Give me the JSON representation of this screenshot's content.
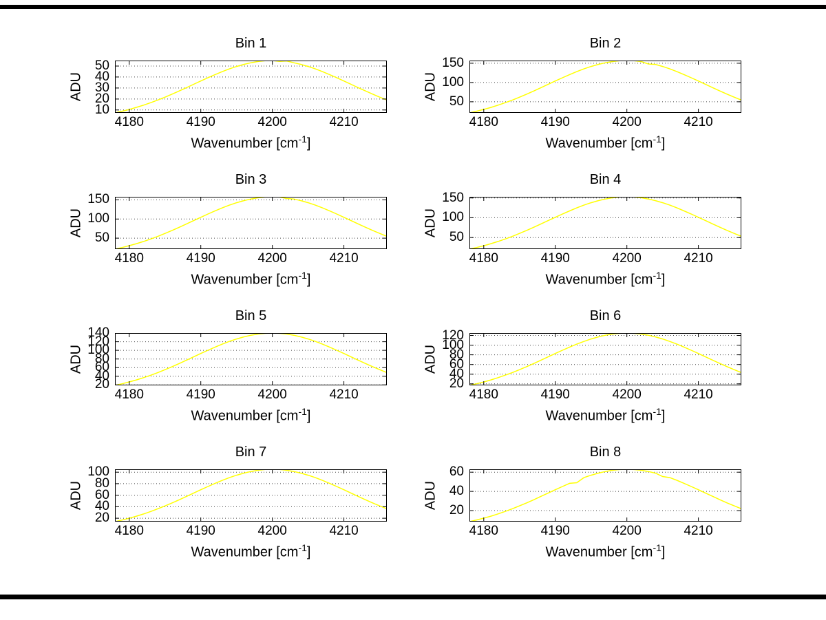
{
  "figure": {
    "background": "#ffffff",
    "line_color": "#ffff00",
    "grid_style": "horizontal-dotted",
    "grid_color": "#444444"
  },
  "labels": {
    "ylabel": "ADU",
    "xlabel_pre": "Wavenumber [cm",
    "xlabel_sup": "-1",
    "xlabel_post": "]"
  },
  "chart_data": {
    "type": "line",
    "x_label": "Wavenumber [cm^-1]",
    "y_label": "ADU",
    "legend": "none",
    "xlim": [
      4178,
      4216
    ],
    "xticks": [
      4180,
      4190,
      4200,
      4210
    ],
    "x": [
      4178,
      4179,
      4180,
      4181,
      4182,
      4183,
      4184,
      4185,
      4186,
      4187,
      4188,
      4189,
      4190,
      4191,
      4192,
      4193,
      4194,
      4195,
      4196,
      4197,
      4198,
      4199,
      4200,
      4201,
      4202,
      4203,
      4204,
      4205,
      4206,
      4207,
      4208,
      4209,
      4210,
      4211,
      4212,
      4213,
      4214,
      4215,
      4216
    ],
    "subplots": [
      {
        "title": "Bin 1",
        "yticks": [
          10,
          20,
          30,
          40,
          50
        ],
        "ylim": [
          7.4,
          55
        ],
        "values": [
          7.4,
          8.9,
          10.5,
          12.4,
          14.4,
          16.7,
          19.1,
          21.7,
          24.5,
          27.4,
          30.3,
          33.4,
          36.4,
          39.4,
          42.2,
          44.9,
          47.4,
          49.6,
          51.5,
          53.0,
          54.1,
          54.8,
          55.0,
          54.2,
          54.6,
          53.0,
          51.5,
          49.6,
          47.4,
          44.9,
          42.2,
          39.4,
          36.4,
          33.4,
          30.3,
          27.4,
          24.5,
          21.7,
          19.1
        ]
      },
      {
        "title": "Bin 2",
        "yticks": [
          50,
          100,
          150
        ],
        "ylim": [
          21.2,
          157
        ],
        "values": [
          21.2,
          25.4,
          30.1,
          35.3,
          41.2,
          47.6,
          54.5,
          62.0,
          69.8,
          78.1,
          86.6,
          95.2,
          103.9,
          112.3,
          120.5,
          128.2,
          135.3,
          141.6,
          147.0,
          151.3,
          154.4,
          156.4,
          157.0,
          156.4,
          154.4,
          148.0,
          147.0,
          141.6,
          135.3,
          128.2,
          120.5,
          112.3,
          103.9,
          95.2,
          86.6,
          78.1,
          69.8,
          62.0,
          54.5
        ]
      },
      {
        "title": "Bin 3",
        "yticks": [
          50,
          100,
          150
        ],
        "ylim": [
          21.4,
          158
        ],
        "values": [
          21.4,
          25.5,
          30.3,
          35.6,
          41.4,
          47.9,
          54.9,
          62.4,
          70.3,
          78.6,
          87.2,
          95.8,
          104.5,
          113.1,
          121.3,
          129.0,
          136.2,
          142.5,
          147.9,
          152.2,
          155.4,
          157.4,
          158.0,
          157.4,
          153.5,
          152.2,
          147.9,
          142.5,
          136.2,
          129.0,
          121.3,
          113.1,
          104.5,
          95.8,
          87.2,
          78.6,
          70.3,
          62.4,
          54.9
        ]
      },
      {
        "title": "Bin 4",
        "yticks": [
          50,
          100,
          150
        ],
        "ylim": [
          20.7,
          153
        ],
        "values": [
          20.7,
          24.7,
          29.3,
          34.4,
          40.1,
          46.3,
          53.1,
          60.4,
          68.1,
          76.1,
          84.4,
          92.8,
          101.2,
          109.5,
          117.4,
          125.0,
          131.9,
          138.0,
          143.2,
          147.4,
          150.5,
          152.4,
          153.0,
          152.4,
          150.5,
          147.4,
          143.2,
          138.0,
          131.9,
          125.0,
          117.4,
          109.5,
          101.2,
          92.8,
          84.4,
          76.1,
          68.1,
          60.4,
          53.1
        ]
      },
      {
        "title": "Bin 5",
        "yticks": [
          20,
          40,
          60,
          80,
          100,
          120,
          140
        ],
        "ylim": [
          18.9,
          140
        ],
        "values": [
          18.9,
          22.6,
          26.8,
          31.5,
          36.7,
          42.4,
          48.6,
          55.3,
          62.3,
          69.6,
          77.2,
          84.9,
          92.6,
          100.2,
          107.5,
          114.3,
          120.7,
          126.3,
          131.0,
          134.9,
          137.7,
          139.4,
          140.0,
          139.4,
          137.7,
          134.9,
          131.0,
          126.3,
          120.7,
          114.3,
          107.5,
          100.2,
          92.6,
          84.9,
          77.2,
          69.6,
          62.3,
          55.3,
          48.6
        ]
      },
      {
        "title": "Bin 6",
        "yticks": [
          20,
          40,
          60,
          80,
          100,
          120
        ],
        "ylim": [
          16.9,
          125
        ],
        "values": [
          16.9,
          20.2,
          23.9,
          28.1,
          32.8,
          37.9,
          43.4,
          49.3,
          55.6,
          62.2,
          69.0,
          75.8,
          82.7,
          89.5,
          96.0,
          102.1,
          107.7,
          112.7,
          117.0,
          120.4,
          123.0,
          124.5,
          125.0,
          124.5,
          123.0,
          120.4,
          117.0,
          112.7,
          107.7,
          102.1,
          96.0,
          89.5,
          82.7,
          75.8,
          69.0,
          62.2,
          55.6,
          49.3,
          43.4
        ]
      },
      {
        "title": "Bin 7",
        "yticks": [
          20,
          40,
          60,
          80,
          100
        ],
        "ylim": [
          14.2,
          105
        ],
        "values": [
          14.2,
          17.0,
          20.1,
          23.6,
          27.5,
          31.8,
          36.5,
          41.4,
          46.7,
          52.2,
          57.9,
          63.7,
          69.5,
          75.1,
          80.6,
          85.8,
          90.5,
          94.7,
          98.3,
          101.2,
          103.3,
          104.6,
          105.0,
          104.6,
          103.3,
          101.2,
          98.3,
          94.7,
          90.5,
          85.8,
          80.6,
          75.1,
          69.5,
          63.7,
          57.9,
          52.2,
          46.7,
          41.4,
          36.5
        ]
      },
      {
        "title": "Bin 8",
        "yticks": [
          20,
          40,
          60
        ],
        "ylim": [
          8.5,
          63
        ],
        "values": [
          8.5,
          10.2,
          12.1,
          14.2,
          16.5,
          19.1,
          21.9,
          24.9,
          28.0,
          31.3,
          34.8,
          38.2,
          41.7,
          45.1,
          48.4,
          49.0,
          54.3,
          56.8,
          59.0,
          60.7,
          62.0,
          62.7,
          63.0,
          62.7,
          62.0,
          60.7,
          59.0,
          55.5,
          54.3,
          51.5,
          48.4,
          45.1,
          41.7,
          38.2,
          34.8,
          31.3,
          28.0,
          24.9,
          21.9
        ]
      }
    ]
  }
}
